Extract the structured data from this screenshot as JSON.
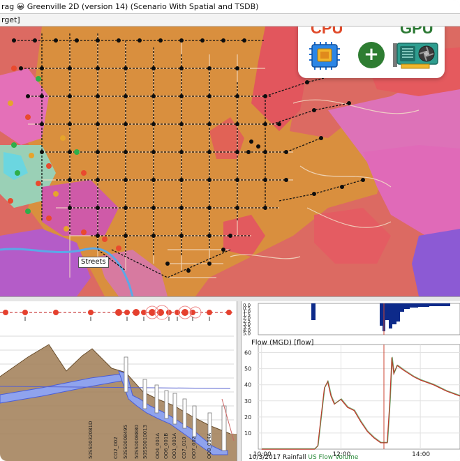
{
  "window": {
    "title": "rag 😀 Greenville 2D (version 14) (Scenario With Spatial and TSDB)",
    "tab_label": "rget]"
  },
  "map": {
    "tooltip": "Streets",
    "colors": {
      "orange_zone": "#d9923e",
      "red_zone": "#e2565d",
      "pink_zone": "#e070c0",
      "purple_zone": "#8a5cd6",
      "node": "#111111"
    }
  },
  "badge": {
    "cpu_label": "CPU",
    "gpu_label": "GPU",
    "plus_symbol": "+",
    "cpu_icon": "cpu-chip-icon",
    "gpu_icon": "gpu-card-icon"
  },
  "profile": {
    "labels": [
      "50SS0032081D",
      "CO2_002",
      "50SS0008495",
      "50SS0008880",
      "50SS0010013",
      "OO4_001A",
      "OO6_001B",
      "OO1_001A",
      "CO7_010",
      "OO7_002",
      "OO8_004A"
    ]
  },
  "graph": {
    "rain_ticks": [
      "0.0",
      "0.5",
      "1.0",
      "1.5",
      "2.0",
      "2.5",
      "3.0",
      "3.5",
      "4.0",
      "5.0"
    ],
    "flow_title": "Flow (MGD) [flow]",
    "flow_ticks": [
      "60",
      "50",
      "40",
      "30",
      "20",
      "10"
    ],
    "x_ticks": [
      "10:00",
      "12:00",
      "14:00"
    ],
    "date_label": "10/3/2017",
    "legend_rainfall": "Rainfall",
    "legend_flow": "US Flow Volume"
  },
  "chart_data": {
    "type": "line",
    "title": "",
    "ylabel": "Flow (MGD) [flow]",
    "xlabel": "",
    "x_range": [
      "09:55",
      "15:00"
    ],
    "ylim": [
      0,
      65
    ],
    "series": [
      {
        "color": "#c0392b",
        "x": [
          "10:00",
          "11:20",
          "11:25",
          "11:30",
          "11:35",
          "11:40",
          "11:45",
          "11:50",
          "12:00",
          "12:10",
          "12:20",
          "12:30",
          "12:40",
          "12:50",
          "13:00",
          "13:10",
          "13:14",
          "13:17",
          "13:20",
          "13:25",
          "13:35",
          "13:50",
          "14:00",
          "14:20",
          "14:40",
          "15:00"
        ],
        "y": [
          0,
          0,
          2,
          20,
          38,
          42,
          33,
          28,
          31,
          26,
          24,
          17,
          11,
          7,
          4,
          4,
          30,
          57,
          47,
          52,
          49,
          45,
          43,
          40,
          36,
          33
        ]
      }
    ]
  }
}
